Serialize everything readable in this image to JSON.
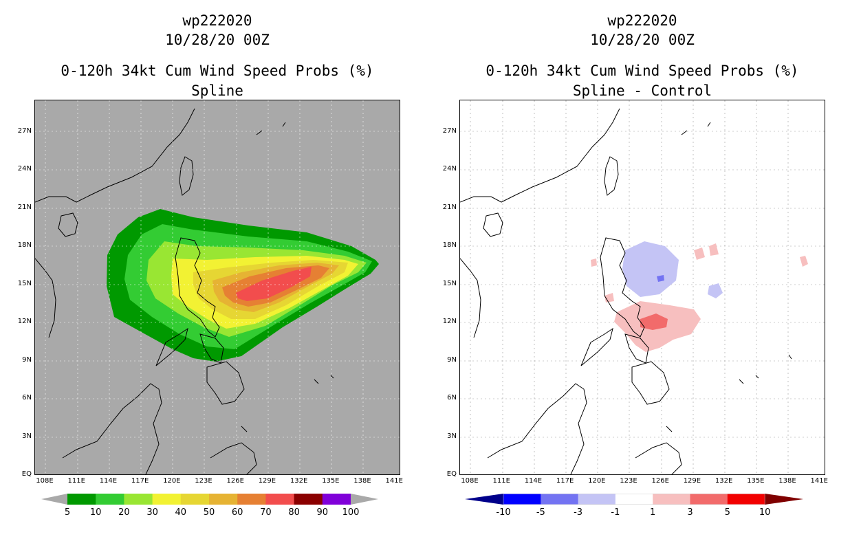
{
  "left_panel": {
    "storm_id": "wp222020",
    "datetime": "10/28/20 00Z",
    "product": "0-120h 34kt Cum Wind Speed Probs (%)",
    "subtitle": "Spline",
    "colorbar": {
      "labels": [
        "5",
        "10",
        "20",
        "30",
        "40",
        "50",
        "60",
        "70",
        "80",
        "90",
        "100"
      ],
      "colors": [
        "#009900",
        "#33cc33",
        "#99e633",
        "#f2f233",
        "#e6d633",
        "#e6b333",
        "#e68033",
        "#f24d4d",
        "#8b0000",
        "#8000d9"
      ],
      "end_arrow_color": "#a9a9a9"
    },
    "map_background": "#a9a9a9"
  },
  "right_panel": {
    "storm_id": "wp222020",
    "datetime": "10/28/20 00Z",
    "product": "0-120h 34kt Cum Wind Speed Probs (%)",
    "subtitle": "Spline - Control",
    "colorbar": {
      "labels": [
        "-10",
        "-5",
        "-3",
        "-1",
        "1",
        "3",
        "5",
        "10"
      ],
      "colors": [
        "#00008b",
        "#0000ff",
        "#7373f2",
        "#c4c4f5",
        "#ffffff",
        "#f7bfbf",
        "#f26b6b",
        "#f20000",
        "#800000"
      ],
      "neutral": "#ffffff"
    },
    "map_background": "#ffffff"
  },
  "axes": {
    "lat_labels": [
      "EQ",
      "3N",
      "6N",
      "9N",
      "12N",
      "15N",
      "18N",
      "21N",
      "24N",
      "27N"
    ],
    "lon_labels": [
      "108E",
      "111E",
      "114E",
      "117E",
      "120E",
      "123E",
      "126E",
      "129E",
      "132E",
      "135E",
      "138E",
      "141E"
    ],
    "lat_range": [
      0,
      29.5
    ],
    "lon_range": [
      107,
      141.5
    ]
  }
}
